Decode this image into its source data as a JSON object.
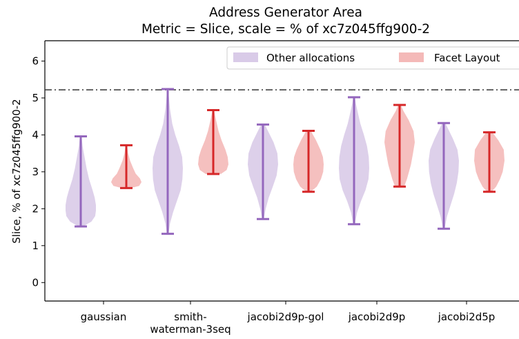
{
  "chart_data": {
    "type": "violin",
    "title": "Address Generator Area",
    "subtitle": "Metric = Slice, scale = % of xc7z045ffg900-2",
    "ylabel": "Slice, % of xc7z045ffg900-2",
    "xlabel": "",
    "ylim": [
      -0.5,
      6.55
    ],
    "yticks": [
      0,
      1,
      2,
      3,
      4,
      5,
      6
    ],
    "grid": false,
    "legend_position": "top-right",
    "reference_line": {
      "y": 5.22,
      "style": "dash-dot",
      "color": "#333333"
    },
    "categories": [
      {
        "label_lines": [
          "gaussian"
        ]
      },
      {
        "label_lines": [
          "smith-",
          "waterman-3seq"
        ]
      },
      {
        "label_lines": [
          "jacobi2d9p-gol"
        ]
      },
      {
        "label_lines": [
          "jacobi2d9p"
        ]
      },
      {
        "label_lines": [
          "jacobi2d5p"
        ]
      }
    ],
    "series": [
      {
        "name": "Other allocations",
        "fill_color": "#d9cbe8",
        "line_color": "#9467bd",
        "stats": [
          {
            "min": 1.52,
            "max": 3.96
          },
          {
            "min": 1.32,
            "max": 5.24
          },
          {
            "min": 1.72,
            "max": 4.28
          },
          {
            "min": 1.58,
            "max": 5.02
          },
          {
            "min": 1.46,
            "max": 4.32
          }
        ],
        "density": [
          [
            [
              1.52,
              0.15
            ],
            [
              1.65,
              0.7
            ],
            [
              1.8,
              0.95
            ],
            [
              1.95,
              1.0
            ],
            [
              2.1,
              1.0
            ],
            [
              2.3,
              0.92
            ],
            [
              2.5,
              0.78
            ],
            [
              2.8,
              0.55
            ],
            [
              3.1,
              0.38
            ],
            [
              3.4,
              0.25
            ],
            [
              3.7,
              0.12
            ],
            [
              3.96,
              0.05
            ]
          ],
          [
            [
              1.32,
              0.05
            ],
            [
              1.6,
              0.15
            ],
            [
              1.9,
              0.35
            ],
            [
              2.2,
              0.6
            ],
            [
              2.5,
              0.85
            ],
            [
              2.8,
              0.97
            ],
            [
              3.1,
              1.0
            ],
            [
              3.4,
              0.95
            ],
            [
              3.7,
              0.75
            ],
            [
              4.0,
              0.5
            ],
            [
              4.3,
              0.3
            ],
            [
              4.7,
              0.15
            ],
            [
              5.0,
              0.08
            ],
            [
              5.24,
              0.03
            ]
          ],
          [
            [
              1.72,
              0.05
            ],
            [
              2.0,
              0.18
            ],
            [
              2.3,
              0.38
            ],
            [
              2.6,
              0.65
            ],
            [
              2.9,
              0.9
            ],
            [
              3.2,
              1.0
            ],
            [
              3.5,
              0.95
            ],
            [
              3.8,
              0.7
            ],
            [
              4.05,
              0.4
            ],
            [
              4.28,
              0.12
            ]
          ],
          [
            [
              1.58,
              0.05
            ],
            [
              1.9,
              0.2
            ],
            [
              2.2,
              0.45
            ],
            [
              2.5,
              0.75
            ],
            [
              2.8,
              0.95
            ],
            [
              3.1,
              1.0
            ],
            [
              3.4,
              0.97
            ],
            [
              3.7,
              0.85
            ],
            [
              4.0,
              0.65
            ],
            [
              4.3,
              0.42
            ],
            [
              4.6,
              0.25
            ],
            [
              4.85,
              0.12
            ],
            [
              5.02,
              0.05
            ]
          ],
          [
            [
              1.46,
              0.05
            ],
            [
              1.8,
              0.22
            ],
            [
              2.1,
              0.45
            ],
            [
              2.4,
              0.68
            ],
            [
              2.7,
              0.86
            ],
            [
              3.0,
              0.97
            ],
            [
              3.3,
              1.0
            ],
            [
              3.6,
              0.9
            ],
            [
              3.9,
              0.6
            ],
            [
              4.15,
              0.3
            ],
            [
              4.32,
              0.1
            ]
          ]
        ]
      },
      {
        "name": "Facet Layout",
        "fill_color": "#f4b9b8",
        "line_color": "#d62728",
        "stats": [
          {
            "min": 2.56,
            "max": 3.72
          },
          {
            "min": 2.94,
            "max": 4.67
          },
          {
            "min": 2.46,
            "max": 4.11
          },
          {
            "min": 2.6,
            "max": 4.81
          },
          {
            "min": 2.46,
            "max": 4.07
          }
        ],
        "density": [
          [
            [
              2.56,
              0.3
            ],
            [
              2.62,
              0.85
            ],
            [
              2.72,
              1.0
            ],
            [
              2.82,
              0.9
            ],
            [
              2.95,
              0.62
            ],
            [
              3.1,
              0.45
            ],
            [
              3.3,
              0.25
            ],
            [
              3.5,
              0.12
            ],
            [
              3.72,
              0.04
            ]
          ],
          [
            [
              2.94,
              0.5
            ],
            [
              3.05,
              0.88
            ],
            [
              3.2,
              1.0
            ],
            [
              3.4,
              0.95
            ],
            [
              3.6,
              0.8
            ],
            [
              3.85,
              0.55
            ],
            [
              4.1,
              0.35
            ],
            [
              4.4,
              0.18
            ],
            [
              4.67,
              0.05
            ]
          ],
          [
            [
              2.46,
              0.15
            ],
            [
              2.6,
              0.55
            ],
            [
              2.8,
              0.82
            ],
            [
              3.0,
              0.97
            ],
            [
              3.2,
              1.0
            ],
            [
              3.4,
              0.95
            ],
            [
              3.6,
              0.78
            ],
            [
              3.85,
              0.5
            ],
            [
              4.11,
              0.15
            ]
          ],
          [
            [
              2.6,
              0.3
            ],
            [
              2.8,
              0.48
            ],
            [
              3.0,
              0.62
            ],
            [
              3.2,
              0.75
            ],
            [
              3.5,
              0.88
            ],
            [
              3.8,
              1.0
            ],
            [
              4.1,
              0.92
            ],
            [
              4.4,
              0.6
            ],
            [
              4.65,
              0.25
            ],
            [
              4.81,
              0.08
            ]
          ],
          [
            [
              2.46,
              0.15
            ],
            [
              2.6,
              0.45
            ],
            [
              2.8,
              0.7
            ],
            [
              3.0,
              0.88
            ],
            [
              3.3,
              1.0
            ],
            [
              3.6,
              0.95
            ],
            [
              3.85,
              0.6
            ],
            [
              4.07,
              0.2
            ]
          ]
        ]
      }
    ]
  }
}
